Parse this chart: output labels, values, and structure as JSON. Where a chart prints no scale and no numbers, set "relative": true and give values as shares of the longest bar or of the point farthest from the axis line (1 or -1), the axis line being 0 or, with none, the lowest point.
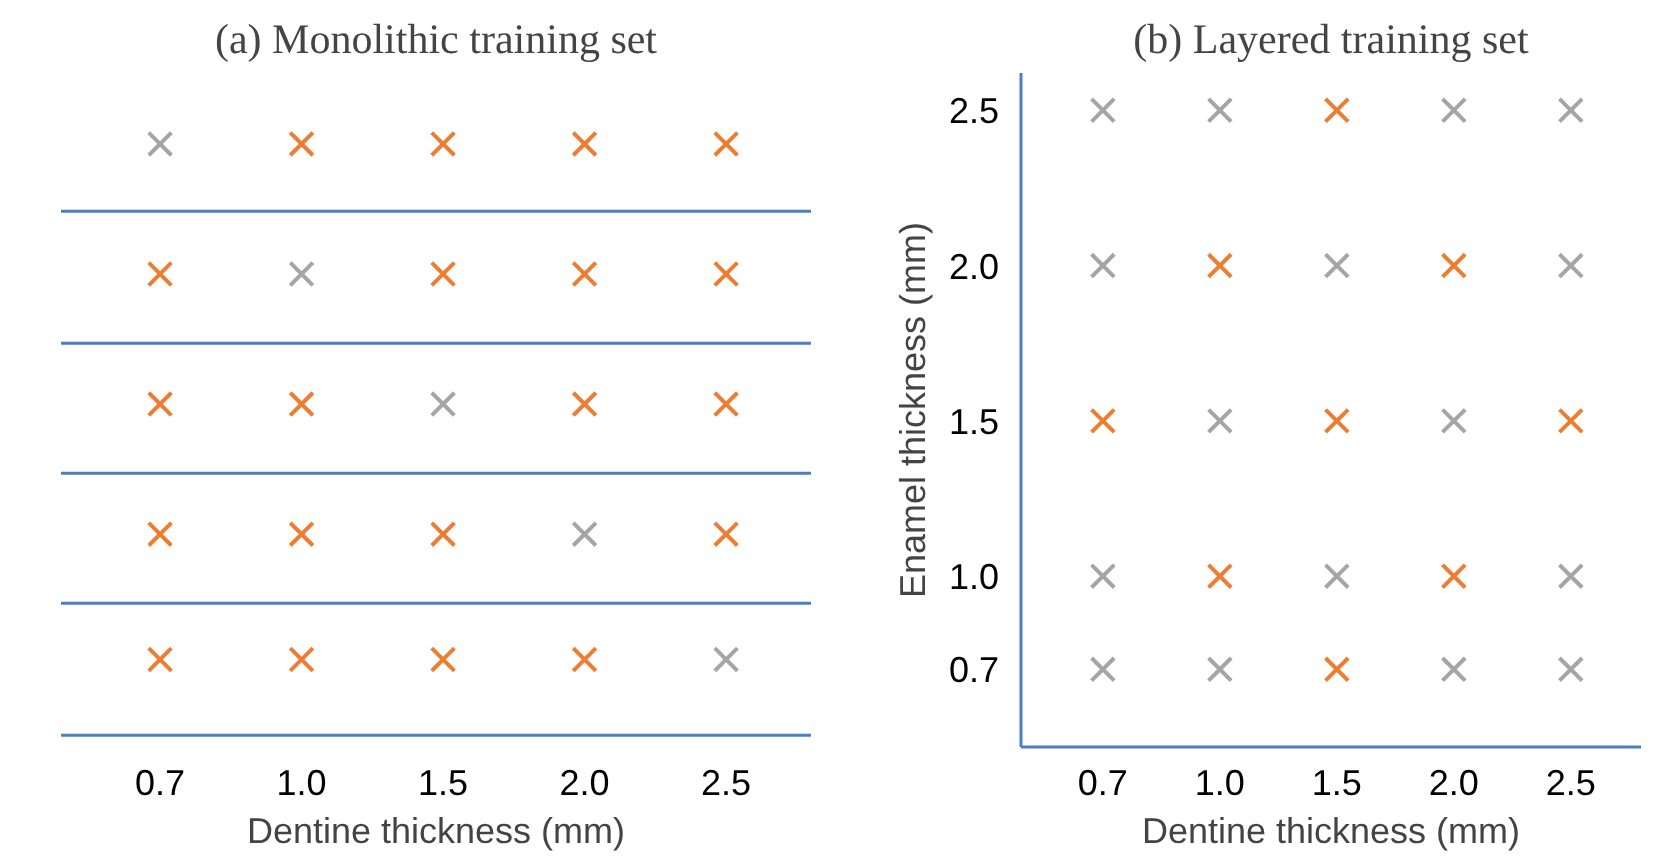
{
  "chart_data": [
    {
      "type": "scatter",
      "title": "(a) Monolithic training set",
      "xlabel": "Dentine thickness (mm)",
      "categories": [
        "0.7",
        "1.0",
        "1.5",
        "2.0",
        "2.5"
      ],
      "relative": true,
      "tick_labels": "x",
      "marker": "cross",
      "grid": false,
      "ref_lines": [
        {
          "axis": "y",
          "value": 0,
          "color": "#4a7fc8"
        },
        {
          "axis": "y",
          "value": 0.223,
          "color": "#4a7fc8"
        },
        {
          "axis": "y",
          "value": 0.443,
          "color": "#4a7fc8"
        },
        {
          "axis": "y",
          "value": 0.663,
          "color": "#4a7fc8"
        },
        {
          "axis": "y",
          "value": 0.886,
          "color": "#4a7fc8"
        }
      ],
      "series": [
        {
          "color": "#a5a5a5",
          "x": [
            "0.7",
            "1.0",
            "1.5",
            "2.0",
            "2.5"
          ],
          "values": [
            1,
            0.78,
            0.56,
            0.34,
            0.128
          ]
        },
        {
          "color": "#ed7d31",
          "x": [
            "1.0",
            "1.5",
            "2.0",
            "2.5",
            "0.7",
            "1.5",
            "2.0",
            "2.5",
            "0.7",
            "1.0",
            "2.0",
            "2.5",
            "0.7",
            "1.0",
            "1.5",
            "2.5",
            "0.7",
            "1.0",
            "1.5",
            "2.0"
          ],
          "values": [
            1,
            1,
            1,
            1,
            0.78,
            0.78,
            0.78,
            0.78,
            0.56,
            0.56,
            0.56,
            0.56,
            0.34,
            0.34,
            0.34,
            0.34,
            0.128,
            0.128,
            0.128,
            0.128
          ]
        }
      ]
    },
    {
      "type": "scatter",
      "title": "(b) Layered training set",
      "xlabel": "Dentine thickness (mm)",
      "ylabel": "Enamel thickness (mm)",
      "categories": [
        "0.7",
        "1.0",
        "1.5",
        "2.0",
        "2.5"
      ],
      "ylim": [
        0.45,
        2.62
      ],
      "yticks": [
        0.7,
        {
          "value": 1,
          "label": "1.0"
        },
        1.5,
        {
          "value": 2,
          "label": "2.0"
        },
        2.5
      ],
      "marker": "cross",
      "grid": false,
      "series": [
        {
          "color": "#a5a5a5",
          "x": [
            "0.7",
            "1.0",
            "2.0",
            "2.5",
            "0.7",
            "1.5",
            "2.5",
            "1.0",
            "2.0",
            "0.7",
            "1.5",
            "2.5",
            "0.7",
            "1.0",
            "2.0",
            "2.5"
          ],
          "values": [
            2.5,
            2.5,
            2.5,
            2.5,
            2.0,
            2.0,
            2.0,
            1.5,
            1.5,
            1.0,
            1.0,
            1.0,
            0.7,
            0.7,
            0.7,
            0.7
          ]
        },
        {
          "color": "#ed7d31",
          "x": [
            "1.5",
            "1.0",
            "2.0",
            "0.7",
            "1.5",
            "2.5",
            "1.0",
            "2.0",
            "1.5"
          ],
          "values": [
            2.5,
            2.0,
            2.0,
            1.5,
            1.5,
            1.5,
            1.0,
            1.0,
            0.7
          ]
        }
      ]
    }
  ]
}
